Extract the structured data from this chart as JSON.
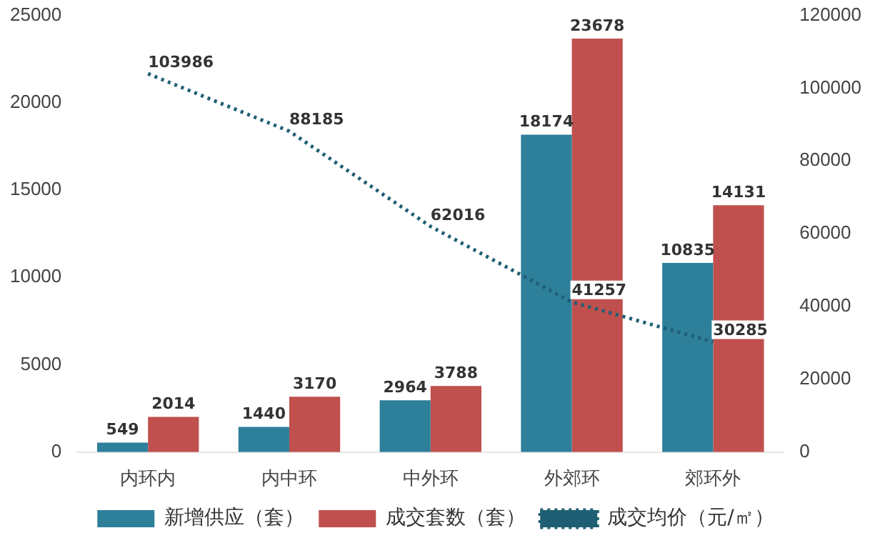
{
  "chart_data": {
    "type": "bar",
    "categories": [
      "内环内",
      "内中环",
      "中外环",
      "外郊环",
      "郊环外"
    ],
    "series": [
      {
        "name": "新增供应（套）",
        "color": "#2e7f9a",
        "values": [
          549,
          1440,
          2964,
          18174,
          10835
        ]
      },
      {
        "name": "成交套数（套）",
        "color": "#c0504d",
        "values": [
          2014,
          3170,
          3788,
          23678,
          14131
        ]
      },
      {
        "name": "成交均价（元/㎡）",
        "color": "#1f5f73",
        "type": "line",
        "axis": "y2",
        "line_style": "dotted",
        "marker": "none",
        "values": [
          103986,
          88185,
          62016,
          41257,
          30285
        ]
      }
    ],
    "ylim": [
      0,
      25000
    ],
    "yticks": [
      0,
      5000,
      10000,
      15000,
      20000,
      25000
    ],
    "y2lim": [
      0,
      120000
    ],
    "y2ticks": [
      0,
      20000,
      40000,
      60000,
      80000,
      100000,
      120000
    ],
    "data_labels": true,
    "legend": "bottom",
    "grid": false
  }
}
